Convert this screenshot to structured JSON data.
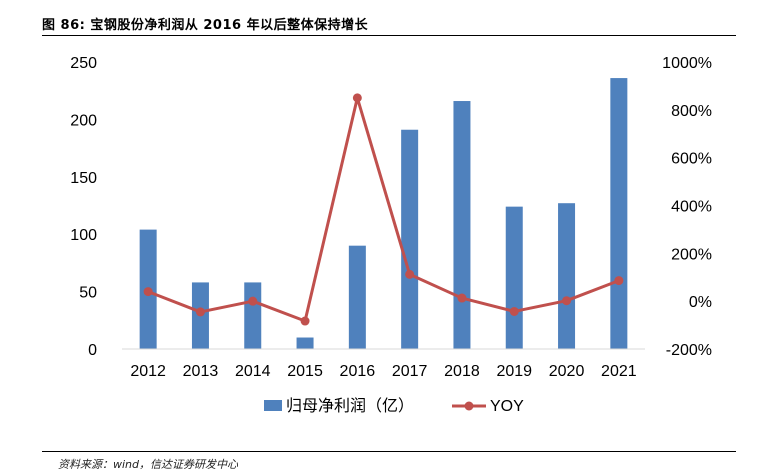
{
  "figure": {
    "title": "图 86:  宝钢股份净利润从 2016 年以后整体保持增长",
    "source": "资料来源：wind，信达证券研发中心"
  },
  "chart_data": {
    "type": "bar+line",
    "categories": [
      "2012",
      "2013",
      "2014",
      "2015",
      "2016",
      "2017",
      "2018",
      "2019",
      "2020",
      "2021"
    ],
    "series": [
      {
        "name": "归母净利润（亿）",
        "kind": "bar",
        "axis": "left",
        "color": "#4f81bd",
        "values": [
          104,
          58,
          58,
          10,
          90,
          191,
          216,
          124,
          127,
          236
        ]
      },
      {
        "name": "YOY",
        "kind": "line",
        "axis": "right",
        "color": "#c0504d",
        "values": [
          0.4,
          -0.45,
          0.0,
          -0.83,
          8.5,
          1.12,
          0.13,
          -0.43,
          0.02,
          0.86
        ]
      }
    ],
    "left_axis": {
      "min": 0,
      "max": 250,
      "ticks": [
        0,
        50,
        100,
        150,
        200,
        250
      ],
      "tick_labels": [
        "0",
        "50",
        "100",
        "150",
        "200",
        "250"
      ]
    },
    "right_axis": {
      "min": -2,
      "max": 10,
      "ticks": [
        -2,
        0,
        2,
        4,
        6,
        8,
        10
      ],
      "tick_labels": [
        "-200%",
        "0%",
        "200%",
        "400%",
        "600%",
        "800%",
        "1000%"
      ]
    },
    "legend": [
      "归母净利润（亿）",
      "YOY"
    ],
    "grid": false
  }
}
